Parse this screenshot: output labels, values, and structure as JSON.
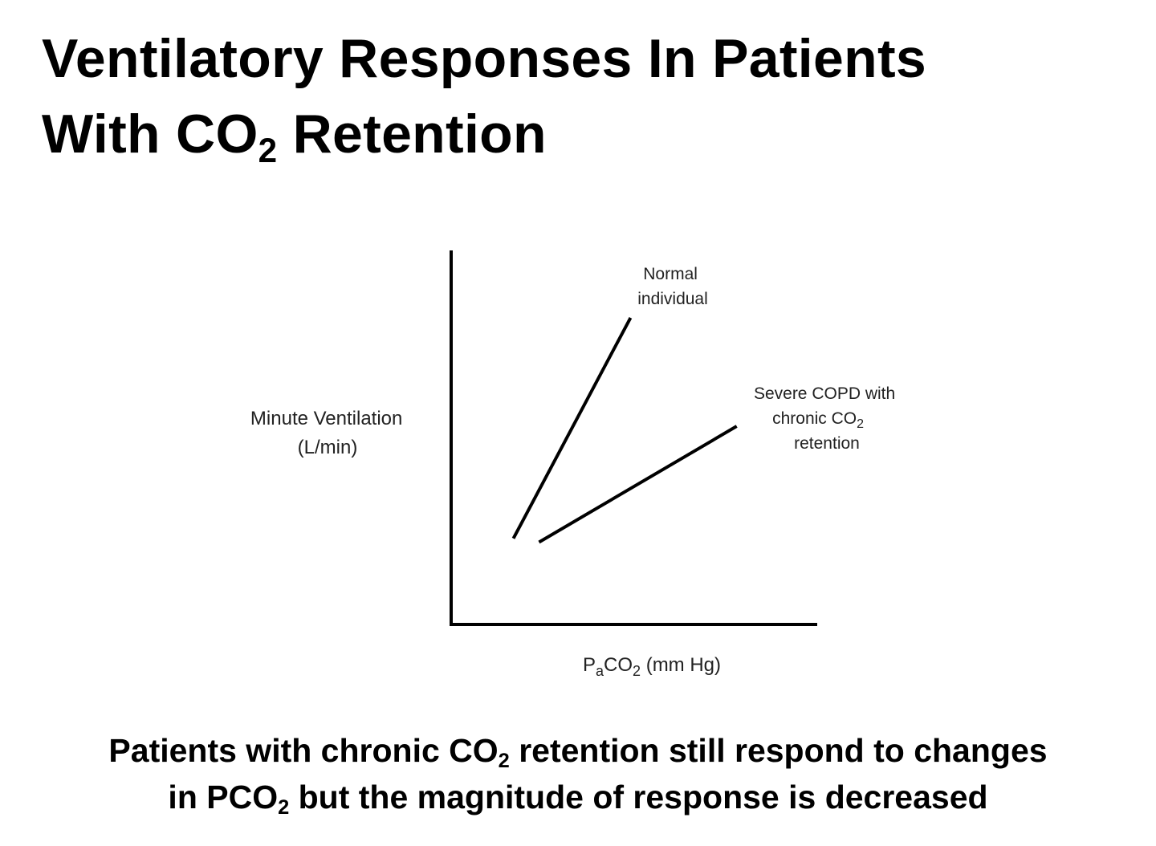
{
  "slide": {
    "title_line1": "Ventilatory Responses In Patients",
    "title_line2_pre": "With CO",
    "title_line2_sub": "2",
    "title_line2_post": " Retention",
    "caption_line1_pre": "Patients with chronic CO",
    "caption_line1_sub": "2",
    "caption_line1_post": " retention still respond to changes",
    "caption_line2_pre": "in PCO",
    "caption_line2_sub": "2",
    "caption_line2_post": " but the magnitude of response is decreased"
  },
  "chart_data": {
    "type": "line",
    "xlabel_pre": "P",
    "xlabel_sub1": "a",
    "xlabel_mid": "CO",
    "xlabel_sub2": "2",
    "xlabel_post": " (mm Hg)",
    "ylabel_line1": "Minute Ventilation",
    "ylabel_line2": "(L/min)",
    "xlim": [
      0,
      10
    ],
    "ylim": [
      0,
      10
    ],
    "ticks": "none",
    "grid": false,
    "line_color": "#000000",
    "series": [
      {
        "name": "Normal individual",
        "label_lines": [
          "Normal",
          "individual"
        ],
        "points": [
          [
            1.7,
            2.3
          ],
          [
            4.9,
            8.2
          ]
        ]
      },
      {
        "name": "Severe COPD with chronic CO2 retention",
        "label_lines": [
          "Severe COPD with",
          "chronic CO",
          "retention"
        ],
        "label_sub": "2",
        "points": [
          [
            2.4,
            2.2
          ],
          [
            7.8,
            5.3
          ]
        ]
      }
    ]
  }
}
